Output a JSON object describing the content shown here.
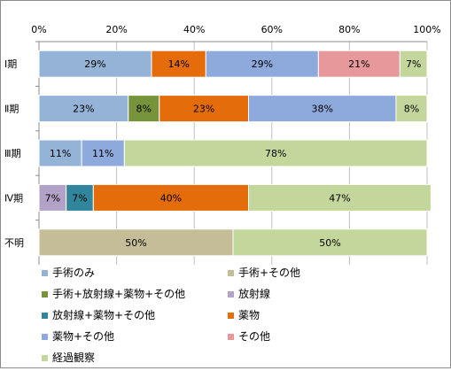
{
  "chart_data": {
    "type": "bar",
    "orientation": "horizontal",
    "stacked": true,
    "percent_stacked": true,
    "categories": [
      "Ⅰ期",
      "Ⅱ期",
      "Ⅲ期",
      "Ⅳ期",
      "不明"
    ],
    "xlim": [
      0,
      100
    ],
    "xticks": [
      "0%",
      "20%",
      "40%",
      "60%",
      "80%",
      "100%"
    ],
    "x_axis_position": "top",
    "grid": true,
    "legend_position": "bottom",
    "series": [
      {
        "name": "手術のみ",
        "color": "#95B3D7",
        "values": [
          29,
          23,
          11,
          0,
          0
        ]
      },
      {
        "name": "手術+その他",
        "color": "#C4BD97",
        "values": [
          0,
          0,
          0,
          0,
          50
        ]
      },
      {
        "name": "手術+放射線+薬物+その他",
        "color": "#77933C",
        "values": [
          0,
          8,
          0,
          0,
          0
        ]
      },
      {
        "name": "放射線",
        "color": "#B3A2C7",
        "values": [
          0,
          0,
          0,
          7,
          0
        ]
      },
      {
        "name": "放射線+薬物+その他",
        "color": "#31859C",
        "values": [
          0,
          0,
          0,
          7,
          0
        ]
      },
      {
        "name": "薬物",
        "color": "#E46C0A",
        "values": [
          14,
          23,
          0,
          40,
          0
        ]
      },
      {
        "name": "薬物+その他",
        "color": "#8EA9DB",
        "values": [
          29,
          38,
          11,
          0,
          0
        ]
      },
      {
        "name": "その他",
        "color": "#E6989A",
        "values": [
          21,
          0,
          0,
          0,
          0
        ]
      },
      {
        "name": "経過観察",
        "color": "#C3D69B",
        "values": [
          7,
          8,
          78,
          47,
          50
        ]
      }
    ],
    "data_labels": [
      [
        "29%",
        "",
        "",
        "",
        "",
        "14%",
        "29%",
        "21%",
        "7%"
      ],
      [
        "23%",
        "",
        "8%",
        "",
        "",
        "23%",
        "38%",
        "",
        "8%"
      ],
      [
        "11%",
        "",
        "",
        "",
        "",
        "",
        "11%",
        "",
        "78%"
      ],
      [
        "",
        "",
        "",
        "7%",
        "7%",
        "40%",
        "",
        "",
        "47%"
      ],
      [
        "",
        "50%",
        "",
        "",
        "",
        "",
        "",
        "",
        "50%"
      ]
    ]
  }
}
